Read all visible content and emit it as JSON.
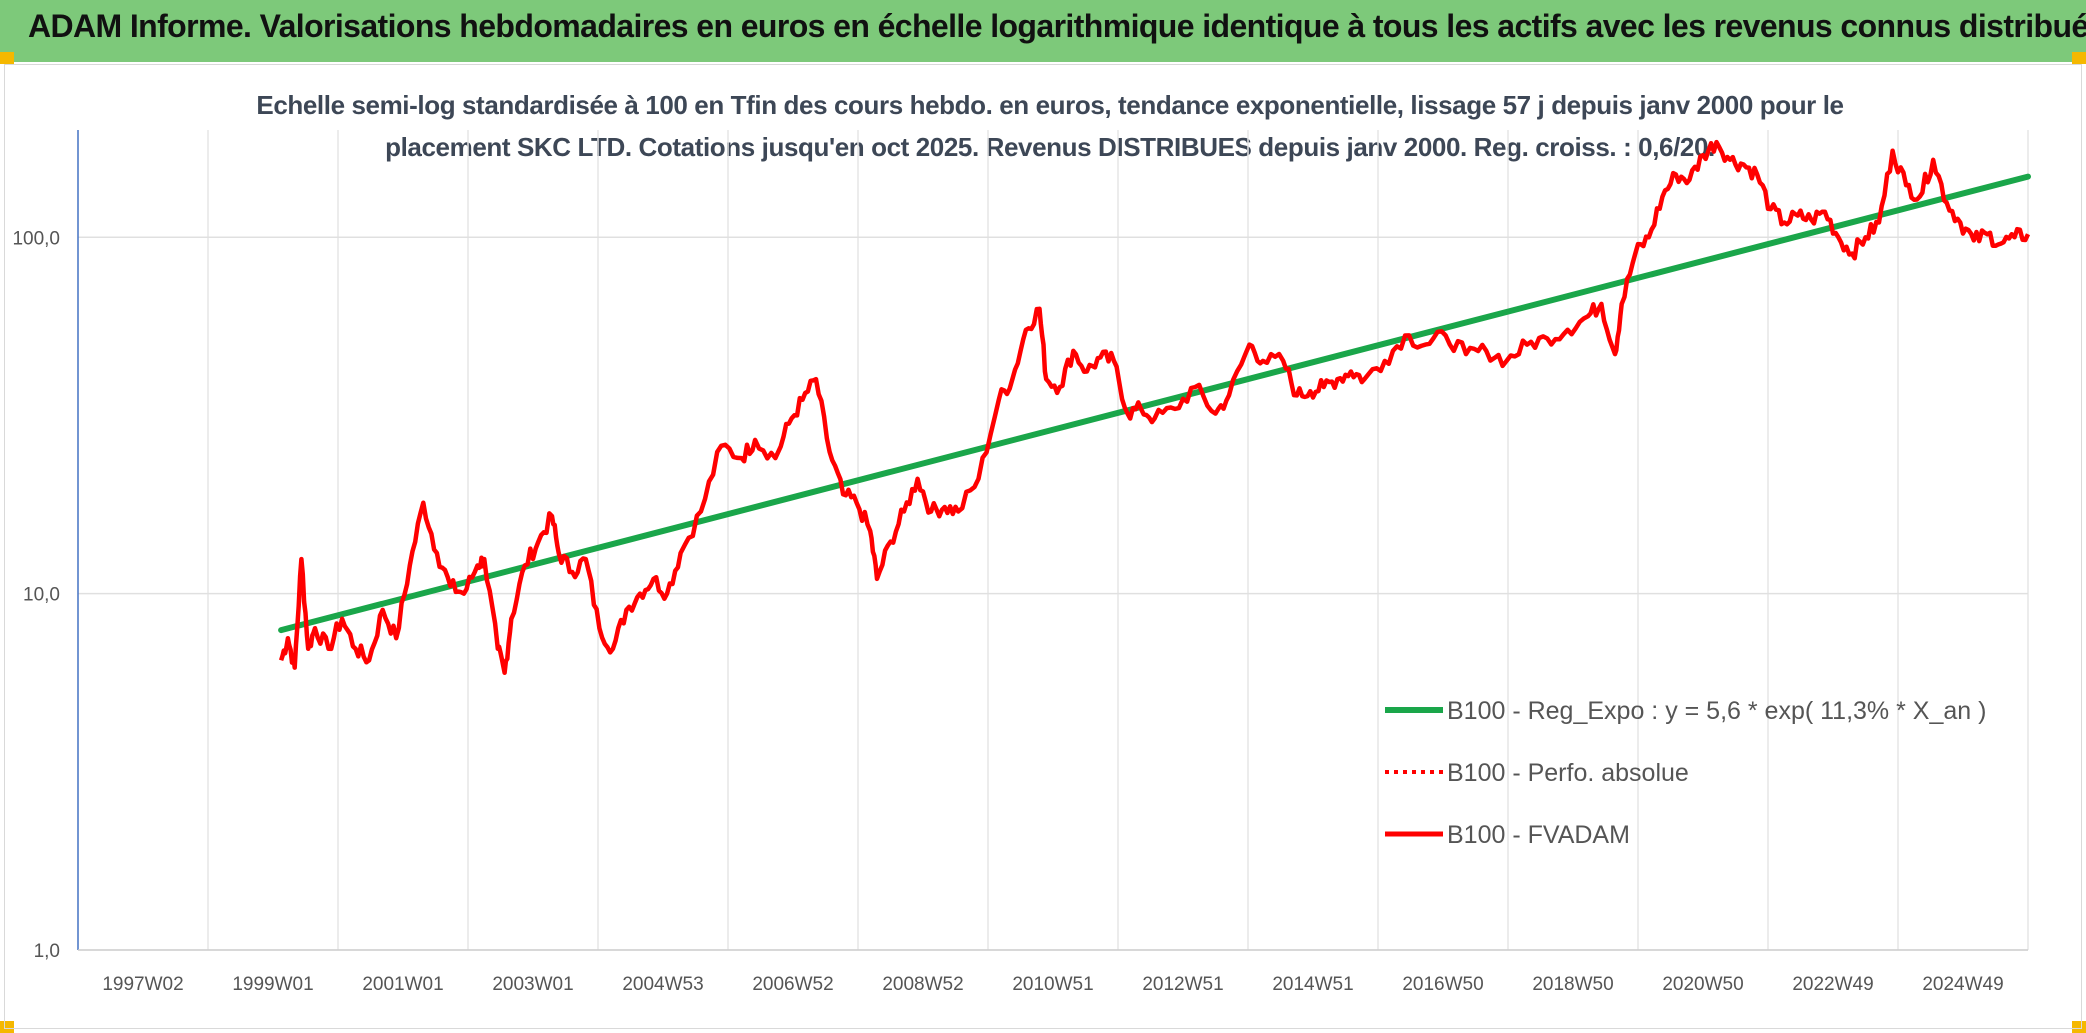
{
  "header": {
    "title": "ADAM Informe. Valorisations hebdomadaires en euros en échelle logarithmique identique à tous les actifs avec les revenus connus distribués"
  },
  "colors": {
    "banner": "#7dc97a",
    "regression": "#1aa64a",
    "price": "#ff0000",
    "corner": "#f5b800"
  },
  "chart_data": {
    "type": "line",
    "title_line1": "Echelle semi-log standardisée à 100 en Tfin des cours hebdo. en euros, tendance exponentielle, lissage 57 j depuis janv 2000 pour le",
    "title_line2": "placement SKC LTD. Cotations jusqu'en oct 2025. Revenus DISTRIBUES depuis janv 2000. Reg. croiss. : 0,6/20.",
    "y_scale": "log",
    "ylim": [
      1,
      200
    ],
    "y_ticks": [
      "1,0",
      "10,0",
      "100,0"
    ],
    "x_range": [
      1997.0,
      2025.8
    ],
    "x_ticks": [
      "1997W02",
      "1999W01",
      "2001W01",
      "2003W01",
      "2004W53",
      "2006W52",
      "2008W52",
      "2010W51",
      "2012W51",
      "2014W51",
      "2016W50",
      "2018W50",
      "2020W50",
      "2022W49",
      "2024W49"
    ],
    "legend": [
      "B100 - Reg_Expo : y = 5,6 * exp( 11,3% *  X_an )",
      "B100 - Perfo. absolue",
      "B100 - FVADAM"
    ],
    "series": [
      {
        "name": "B100 - Reg_Expo : y = 5,6 * exp( 11,3% *  X_an )",
        "style": "solid-green",
        "x": [
          2000.0,
          2025.8
        ],
        "y": [
          7.9,
          148
        ]
      },
      {
        "name": "B100 - Perfo. absolue",
        "style": "dotted-red",
        "x": [],
        "y": []
      },
      {
        "name": "B100 - FVADAM",
        "style": "solid-red",
        "x": [
          2000.0,
          2000.1,
          2000.2,
          2000.3,
          2000.4,
          2000.5,
          2000.7,
          2000.9,
          2001.1,
          2001.3,
          2001.5,
          2001.7,
          2001.9,
          2002.1,
          2002.3,
          2002.5,
          2002.7,
          2002.9,
          2003.0,
          2003.2,
          2003.3,
          2003.4,
          2003.6,
          2003.8,
          2004.0,
          2004.1,
          2004.3,
          2004.5,
          2004.7,
          2004.9,
          2005.1,
          2005.3,
          2005.5,
          2005.7,
          2005.9,
          2006.2,
          2006.5,
          2006.8,
          2007.0,
          2007.3,
          2007.5,
          2007.7,
          2007.9,
          2008.1,
          2008.3,
          2008.5,
          2008.7,
          2008.8,
          2009.0,
          2009.2,
          2009.4,
          2009.6,
          2009.8,
          2010.0,
          2010.3,
          2010.6,
          2010.8,
          2011.0,
          2011.2,
          2011.3,
          2011.5,
          2011.7,
          2011.9,
          2012.1,
          2012.3,
          2012.5,
          2012.7,
          2012.9,
          2013.2,
          2013.5,
          2013.8,
          2014.0,
          2014.3,
          2014.5,
          2014.8,
          2015.0,
          2015.2,
          2015.4,
          2015.6,
          2015.8,
          2016.0,
          2016.3,
          2016.6,
          2016.9,
          2017.2,
          2017.5,
          2017.8,
          2018.1,
          2018.4,
          2018.7,
          2019.0,
          2019.3,
          2019.5,
          2019.7,
          2019.8,
          2020.0,
          2020.2,
          2020.4,
          2020.6,
          2020.8,
          2021.0,
          2021.2,
          2021.4,
          2021.6,
          2021.8,
          2022.0,
          2022.2,
          2022.4,
          2022.6,
          2022.8,
          2023.0,
          2023.2,
          2023.4,
          2023.6,
          2023.8,
          2024.0,
          2024.2,
          2024.4,
          2024.6,
          2024.8,
          2025.0,
          2025.2,
          2025.4,
          2025.6,
          2025.8
        ],
        "y": [
          6.5,
          7.5,
          6.2,
          12.5,
          7.0,
          8.0,
          7.0,
          8.5,
          7.0,
          6.5,
          9.0,
          7.5,
          12.0,
          18.0,
          13.0,
          10.5,
          10.0,
          12.0,
          12.5,
          7.0,
          6.0,
          8.5,
          12.0,
          14.0,
          16.5,
          13.0,
          11.5,
          12.5,
          8.0,
          7.0,
          9.0,
          10.0,
          11.0,
          10.0,
          13.0,
          17.0,
          26.0,
          24.0,
          27.0,
          24.0,
          30.0,
          35.0,
          40.0,
          25.0,
          19.0,
          18.0,
          15.0,
          11.0,
          14.0,
          17.0,
          21.0,
          17.0,
          17.5,
          17.0,
          21.0,
          35.0,
          40.0,
          55.0,
          63.0,
          40.0,
          38.0,
          48.0,
          42.0,
          46.0,
          45.0,
          32.0,
          33.0,
          31.0,
          33.0,
          38.0,
          32.0,
          36.0,
          50.0,
          45.0,
          45.0,
          36.0,
          37.0,
          38.0,
          40.0,
          42.0,
          40.0,
          45.0,
          53.0,
          50.0,
          53.0,
          47.0,
          48.0,
          45.0,
          50.0,
          52.0,
          55.0,
          60.0,
          65.0,
          47.0,
          65.0,
          90.0,
          100.0,
          130.0,
          150.0,
          145.0,
          170.0,
          185.0,
          165.0,
          160.0,
          150.0,
          120.0,
          110.0,
          115.0,
          112.0,
          118.0,
          100.0,
          90.0,
          100.0,
          110.0,
          175.0,
          140.0,
          130.0,
          165.0,
          125.0,
          110.0,
          98.0,
          102.0,
          96.0,
          100.0,
          102.0
        ]
      }
    ]
  }
}
